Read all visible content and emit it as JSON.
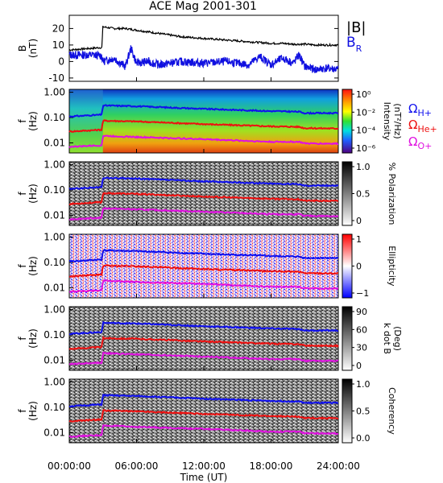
{
  "chart_data": {
    "type": "line",
    "title": "ACE Mag 2001-301",
    "xlabel": "Time (UT)",
    "x_ticks": [
      "00:00:00",
      "06:00:00",
      "12:00:00",
      "18:00:00",
      "24:00:00"
    ],
    "x_range_hours": [
      0,
      24
    ],
    "panel1": {
      "ylabel": [
        "B",
        "(nT)"
      ],
      "ylim": [
        -12,
        28
      ],
      "y_ticks": [
        20,
        10,
        0,
        -10
      ],
      "legend": {
        "bmag": "|B|",
        "br_main": "B",
        "br_sub": "R"
      },
      "colors": {
        "bmag": "#000000",
        "br": "#1010e0"
      },
      "series": [
        {
          "key": "bmag",
          "x": [
            0,
            1,
            2,
            2.9,
            3.0,
            4,
            5,
            6,
            8,
            10,
            12,
            14,
            16,
            18,
            19,
            20,
            21,
            22,
            23,
            24
          ],
          "y": [
            7,
            7.5,
            8,
            8.5,
            21,
            20,
            20,
            19,
            17,
            15,
            14,
            13,
            12,
            11,
            11,
            10.5,
            10.5,
            10,
            10,
            10
          ]
        },
        {
          "key": "br",
          "x": [
            0,
            1,
            2,
            2.9,
            3.0,
            4,
            5,
            5.5,
            6,
            7,
            8,
            10,
            12,
            14,
            16,
            17,
            18,
            19,
            20,
            20.5,
            21,
            22,
            23,
            24
          ],
          "y": [
            4,
            4,
            4,
            3.5,
            0,
            2,
            -3,
            8,
            -1,
            0,
            -2,
            0,
            -1,
            0,
            -2,
            3,
            -2,
            2,
            -1,
            4,
            -3,
            -5,
            -4,
            -5
          ]
        }
      ]
    },
    "spectral_panels": [
      {
        "colorbar": "rainbow",
        "cb_ticks": [
          "10⁰",
          "10⁻²",
          "10⁻⁴",
          "10⁻⁶"
        ],
        "cb_label": [
          "Intensity",
          "(nT²/Hz)"
        ]
      },
      {
        "colorbar": "gray",
        "cb_ticks": [
          "1.0",
          "0.5",
          "0"
        ],
        "cb_label": [
          "% Polarization"
        ]
      },
      {
        "colorbar": "redblue",
        "cb_ticks": [
          "1",
          "0",
          "−1"
        ],
        "cb_label": [
          "Ellipticity"
        ]
      },
      {
        "colorbar": "gray",
        "cb_ticks": [
          "90",
          "60",
          "30",
          "0"
        ],
        "cb_label": [
          "k dot B",
          "(Deg)"
        ]
      },
      {
        "colorbar": "gray",
        "cb_ticks": [
          "1.0",
          "0.5",
          "0.0"
        ],
        "cb_label": [
          "Coherency"
        ]
      }
    ],
    "freq_axis": {
      "ylabel": [
        "f",
        "(Hz)"
      ],
      "ylim": [
        0.004,
        1.3
      ],
      "scale": "log",
      "ticks": [
        "1.00",
        "0.10",
        "0.01"
      ],
      "tick_values": [
        1.0,
        0.1,
        0.01
      ]
    },
    "gyro_lines": [
      {
        "key": "H",
        "label": "Ω",
        "sub": "H+",
        "color": "#1010ee",
        "x": [
          0,
          2.9,
          3.0,
          6,
          12,
          18,
          20.5,
          21,
          24
        ],
        "f": [
          0.11,
          0.13,
          0.3,
          0.28,
          0.22,
          0.18,
          0.17,
          0.15,
          0.15
        ]
      },
      {
        "key": "He",
        "label": "Ω",
        "sub": "He+",
        "color": "#ee1010",
        "x": [
          0,
          2.9,
          3.0,
          6,
          12,
          18,
          20.5,
          21,
          24
        ],
        "f": [
          0.028,
          0.033,
          0.075,
          0.07,
          0.055,
          0.045,
          0.043,
          0.038,
          0.037
        ]
      },
      {
        "key": "O",
        "label": "Ω",
        "sub": "O+",
        "color": "#e010e0",
        "x": [
          0,
          2.9,
          3.0,
          6,
          12,
          18,
          20.5,
          21,
          24
        ],
        "f": [
          0.007,
          0.008,
          0.019,
          0.017,
          0.014,
          0.011,
          0.011,
          0.0095,
          0.0093
        ]
      }
    ]
  }
}
